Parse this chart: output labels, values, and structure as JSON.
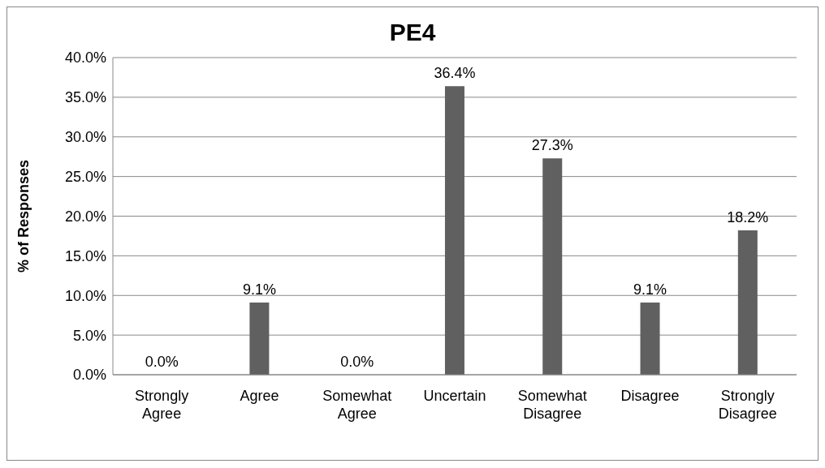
{
  "chart_data": {
    "type": "bar",
    "title": "PE4",
    "ylabel": "% of Responses",
    "categories": [
      "Strongly Agree",
      "Agree",
      "Somewhat Agree",
      "Uncertain",
      "Somewhat Disagree",
      "Disagree",
      "Strongly Disagree"
    ],
    "values": [
      0,
      9.1,
      0,
      36.4,
      27.3,
      9.1,
      18.2
    ],
    "value_labels": [
      "0.0%",
      "9.1%",
      "0.0%",
      "36.4%",
      "27.3%",
      "9.1%",
      "18.2%"
    ],
    "color": "#606060",
    "ylim": [
      0,
      40
    ],
    "yticks": [
      {
        "value": 0,
        "label": "0.0%"
      },
      {
        "value": 5,
        "label": "5.0%"
      },
      {
        "value": 10,
        "label": "10.0%"
      },
      {
        "value": 15,
        "label": "15.0%"
      },
      {
        "value": 20,
        "label": "20.0%"
      },
      {
        "value": 25,
        "label": "25.0%"
      },
      {
        "value": 30,
        "label": "30.0%"
      },
      {
        "value": 35,
        "label": "35.0%"
      },
      {
        "value": 40,
        "label": "40.0%"
      }
    ],
    "grid": "y",
    "legend": false
  }
}
